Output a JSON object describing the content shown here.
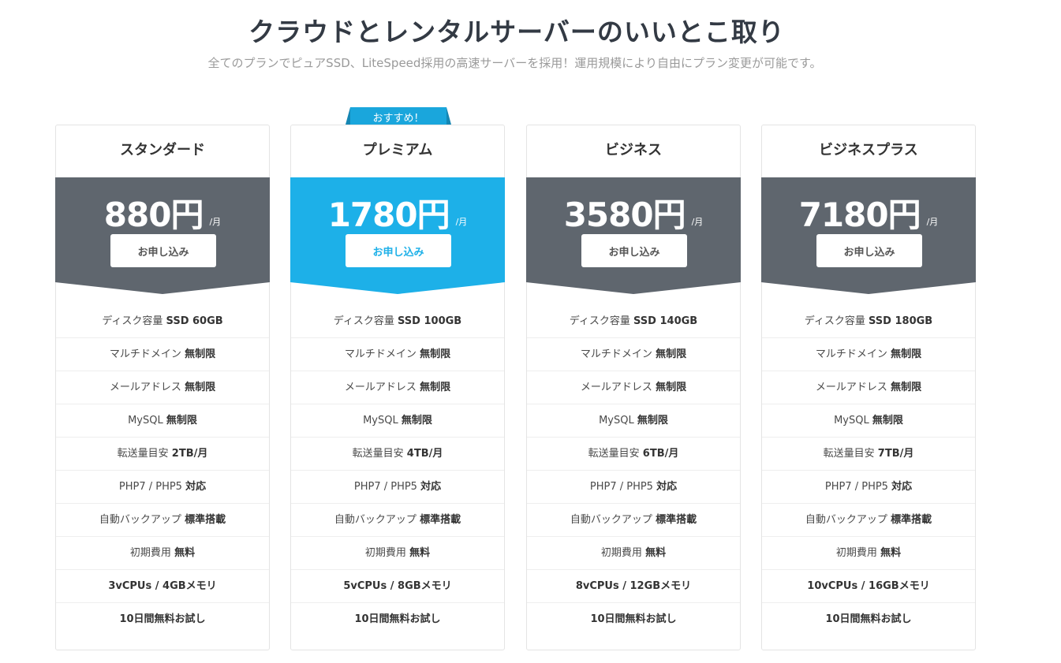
{
  "header": {
    "title": "クラウドとレンタルサーバーのいいとこ取り",
    "subtitle": "全てのプランでピュアSSD、LiteSpeed採用の高速サーバーを採用！運用規模により自由にプラン変更が可能です。"
  },
  "ribbon_label": "おすすめ！",
  "colors": {
    "standard": "#5f666e",
    "featured": "#1db0e8",
    "ribbon": "#1aa6dc",
    "ribbon_dark": "#1586b3"
  },
  "plans": [
    {
      "name": "スタンダード",
      "price": "880円",
      "unit": "/月",
      "button": "お申し込み",
      "disk": "ディスク容量",
      "disk_val": "SSD 60GB",
      "transfer": "転送量目安",
      "transfer_val": "2TB/月",
      "cpu": "3vCPUs / 4GBメモリ"
    },
    {
      "name": "プレミアム",
      "price": "1780円",
      "unit": "/月",
      "button": "お申し込み",
      "disk": "ディスク容量",
      "disk_val": "SSD 100GB",
      "transfer": "転送量目安",
      "transfer_val": "4TB/月",
      "cpu": "5vCPUs / 8GBメモリ"
    },
    {
      "name": "ビジネス",
      "price": "3580円",
      "unit": "/月",
      "button": "お申し込み",
      "disk": "ディスク容量",
      "disk_val": "SSD 140GB",
      "transfer": "転送量目安",
      "transfer_val": "6TB/月",
      "cpu": "8vCPUs / 12GBメモリ"
    },
    {
      "name": "ビジネスプラス",
      "price": "7180円",
      "unit": "/月",
      "button": "お申し込み",
      "disk": "ディスク容量",
      "disk_val": "SSD 180GB",
      "transfer": "転送量目安",
      "transfer_val": "7TB/月",
      "cpu": "10vCPUs / 16GBメモリ"
    }
  ],
  "common": {
    "domain": "マルチドメイン",
    "domain_val": "無制限",
    "mail": "メールアドレス",
    "mail_val": "無制限",
    "mysql": "MySQL",
    "mysql_val": "無制限",
    "php": "PHP7 / PHP5",
    "php_val": "対応",
    "backup": "自動バックアップ",
    "backup_val": "標準搭載",
    "fee": "初期費用",
    "fee_val": "無料",
    "trial": "10日間無料お試し"
  }
}
